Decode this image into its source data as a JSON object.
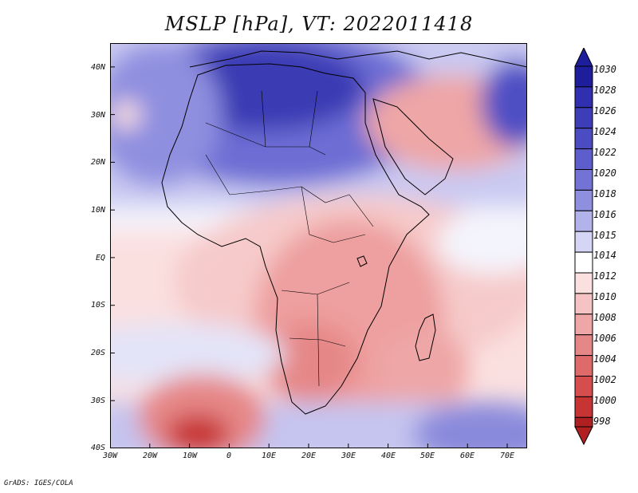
{
  "title": "MSLP [hPa], VT: 2022011418",
  "map": {
    "region": "Africa",
    "lon_range": [
      -30,
      75
    ],
    "lat_range": [
      -40,
      45
    ],
    "lat_ticks": [
      "40N",
      "30N",
      "20N",
      "10N",
      "EQ",
      "10S",
      "20S",
      "30S",
      "40S"
    ],
    "lon_ticks": [
      "30W",
      "20W",
      "10W",
      "0",
      "10E",
      "20E",
      "30E",
      "40E",
      "50E",
      "60E",
      "70E"
    ]
  },
  "colorbar": {
    "levels": [
      "1030",
      "1028",
      "1026",
      "1024",
      "1022",
      "1020",
      "1018",
      "1016",
      "1015",
      "1014",
      "1012",
      "1010",
      "1008",
      "1006",
      "1004",
      "1002",
      "1000",
      "998"
    ],
    "colors": [
      "#1e1e9c",
      "#2f2fb0",
      "#3d3db8",
      "#4b4bc2",
      "#5d5dcc",
      "#7373d6",
      "#8f8fe0",
      "#b3b3ec",
      "#d5d5f6",
      "#ffffff",
      "#fbe0e0",
      "#f5c3c3",
      "#eea6a6",
      "#e68787",
      "#de6a6a",
      "#d64d4d",
      "#c73434",
      "#b02020"
    ]
  },
  "credit": "GrADS: IGES/COLA"
}
